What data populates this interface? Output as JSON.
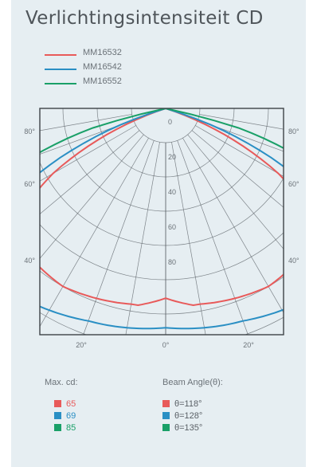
{
  "chart_data": {
    "type": "polar",
    "title": "Verlichtingsintensiteit CD",
    "series": [
      {
        "name": "MM16532",
        "color": "#e85a5a",
        "max_cd": "65",
        "beam_angle": "θ=118°"
      },
      {
        "name": "MM16542",
        "color": "#2a8fc4",
        "max_cd": "69",
        "beam_angle": "θ=128°"
      },
      {
        "name": "MM16552",
        "color": "#1aa068",
        "max_cd": "85",
        "beam_angle": "θ=135°"
      }
    ],
    "radial_ticks": [
      "0",
      "20",
      "40",
      "60",
      "80"
    ],
    "angle_labels": {
      "left": [
        "80°",
        "60°",
        "40°"
      ],
      "right": [
        "80°",
        "60°",
        "40°"
      ],
      "bottom": [
        "20°",
        "0°",
        "20°"
      ]
    },
    "max_cd_label": "Max. cd:",
    "beam_angle_label": "Beam Angle(θ):"
  },
  "colors": {
    "grid": "#5a6066",
    "frame": "#3d4247",
    "background": "#e6eef2"
  }
}
